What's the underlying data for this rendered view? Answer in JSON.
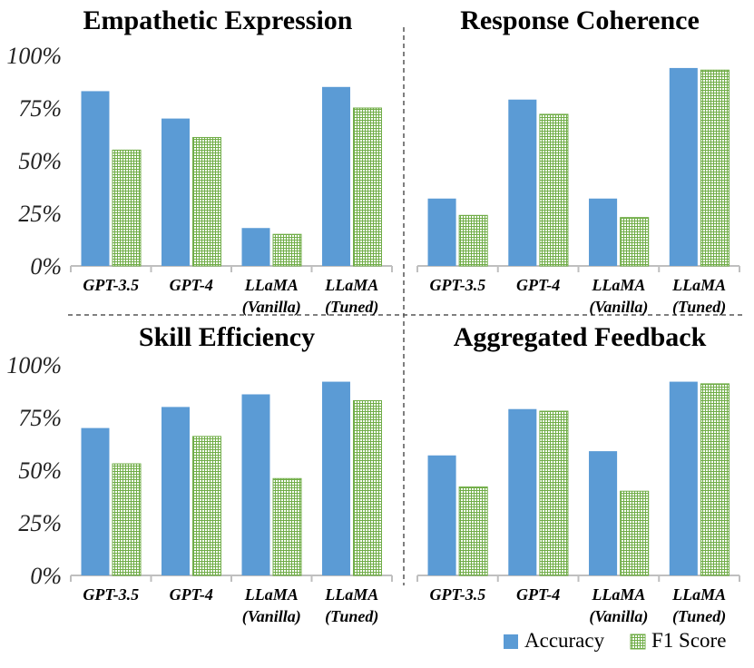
{
  "chart_data": [
    {
      "type": "bar",
      "title": "Empathetic Expression",
      "categories": [
        [
          "GPT-3.5"
        ],
        [
          "GPT-4"
        ],
        [
          "LLaMA",
          "(Vanilla)"
        ],
        [
          "LLaMA",
          "(Tuned)"
        ]
      ],
      "yticks": [
        "0%",
        "25%",
        "50%",
        "75%",
        "100%"
      ],
      "ylim": [
        0,
        100
      ],
      "series": [
        {
          "name": "Accuracy",
          "values": [
            83,
            70,
            18,
            85
          ]
        },
        {
          "name": "F1 Score",
          "values": [
            55,
            61,
            15,
            75
          ]
        }
      ]
    },
    {
      "type": "bar",
      "title": "Response Coherence",
      "categories": [
        [
          "GPT-3.5"
        ],
        [
          "GPT-4"
        ],
        [
          "LLaMA",
          "(Vanilla)"
        ],
        [
          "LLaMA",
          "(Tuned)"
        ]
      ],
      "yticks": [],
      "ylim": [
        0,
        100
      ],
      "series": [
        {
          "name": "Accuracy",
          "values": [
            32,
            79,
            32,
            94
          ]
        },
        {
          "name": "F1 Score",
          "values": [
            24,
            72,
            23,
            93
          ]
        }
      ]
    },
    {
      "type": "bar",
      "title": "Skill Efficiency",
      "categories": [
        [
          "GPT-3.5"
        ],
        [
          "GPT-4"
        ],
        [
          "LLaMA",
          "(Vanilla)"
        ],
        [
          "LLaMA",
          "(Tuned)"
        ]
      ],
      "yticks": [
        "0%",
        "25%",
        "50%",
        "75%",
        "100%"
      ],
      "ylim": [
        0,
        100
      ],
      "series": [
        {
          "name": "Accuracy",
          "values": [
            70,
            80,
            86,
            92
          ]
        },
        {
          "name": "F1 Score",
          "values": [
            53,
            66,
            46,
            83
          ]
        }
      ]
    },
    {
      "type": "bar",
      "title": "Aggregated Feedback",
      "categories": [
        [
          "GPT-3.5"
        ],
        [
          "GPT-4"
        ],
        [
          "LLaMA",
          "(Vanilla)"
        ],
        [
          "LLaMA",
          "(Tuned)"
        ]
      ],
      "yticks": [],
      "ylim": [
        0,
        100
      ],
      "series": [
        {
          "name": "Accuracy",
          "values": [
            57,
            79,
            59,
            92
          ]
        },
        {
          "name": "F1 Score",
          "values": [
            42,
            78,
            40,
            91
          ]
        }
      ]
    }
  ],
  "legend": {
    "position": "bottom-right",
    "items": [
      {
        "label": "Accuracy",
        "style": "solid"
      },
      {
        "label": "F1 Score",
        "style": "grid-pattern"
      }
    ]
  },
  "colors": {
    "accuracy": "#5b9bd5",
    "f1_fill": "#ffffff",
    "f1_grid": "#70ad47",
    "axis": "#bfbfbf",
    "divider": "#555555"
  }
}
